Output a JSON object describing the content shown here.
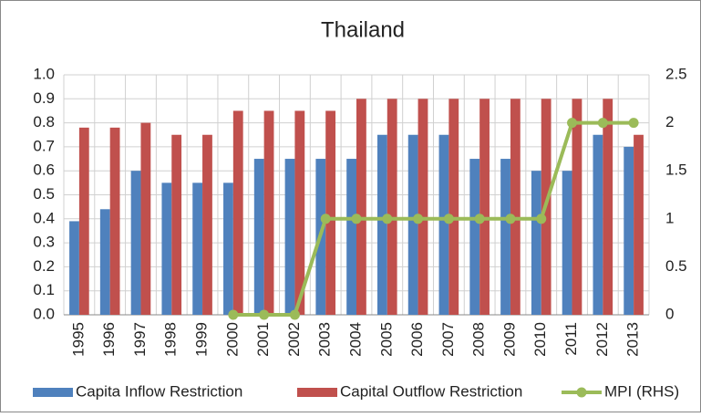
{
  "chart_data": {
    "type": "bar",
    "title": "Thailand",
    "categories": [
      "1995",
      "1996",
      "1997",
      "1998",
      "1999",
      "2000",
      "2001",
      "2002",
      "2003",
      "2004",
      "2005",
      "2006",
      "2007",
      "2008",
      "2009",
      "2010",
      "2011",
      "2012",
      "2013"
    ],
    "series": [
      {
        "name": "Capita Inflow Restriction",
        "color": "#4f81bd",
        "type": "bar",
        "values": [
          0.39,
          0.44,
          0.6,
          0.55,
          0.55,
          0.55,
          0.65,
          0.65,
          0.65,
          0.65,
          0.75,
          0.75,
          0.75,
          0.65,
          0.65,
          0.6,
          0.6,
          0.75,
          0.7
        ]
      },
      {
        "name": "Capital Outflow Restriction",
        "color": "#c0504d",
        "type": "bar",
        "values": [
          0.78,
          0.78,
          0.8,
          0.75,
          0.75,
          0.85,
          0.85,
          0.85,
          0.85,
          0.9,
          0.9,
          0.9,
          0.9,
          0.9,
          0.9,
          0.9,
          0.9,
          0.9,
          0.75
        ]
      },
      {
        "name": "MPI (RHS)",
        "color": "#9bbb59",
        "type": "line",
        "axis": "y2",
        "values": [
          null,
          null,
          null,
          null,
          null,
          0,
          0,
          0,
          1,
          1,
          1,
          1,
          1,
          1,
          1,
          1,
          2,
          2,
          2
        ]
      }
    ],
    "ylim": [
      0,
      1
    ],
    "yticks": [
      {
        "value": 0,
        "label": "0.0"
      },
      0.1,
      0.2,
      0.3,
      0.4,
      0.5,
      0.6,
      0.7,
      0.8,
      0.9,
      {
        "value": 1,
        "label": "1.0"
      }
    ],
    "y2lim": [
      0,
      2.5
    ],
    "y2ticks": [
      0,
      0.5,
      1,
      1.5,
      2,
      2.5
    ],
    "grid": true,
    "legend": "bottom"
  }
}
